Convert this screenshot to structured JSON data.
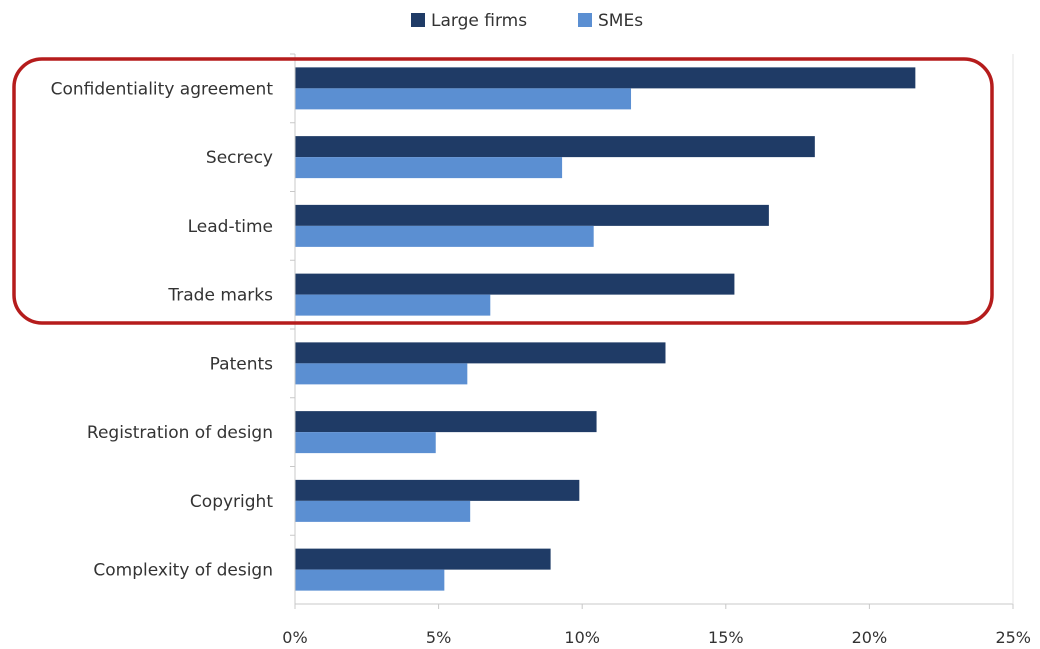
{
  "chart_data": {
    "type": "bar",
    "orientation": "horizontal",
    "categories": [
      "Confidentiality agreement",
      "Secrecy",
      "Lead-time",
      "Trade marks",
      "Patents",
      "Registration of design",
      "Copyright",
      "Complexity of design"
    ],
    "series": [
      {
        "name": "Large firms",
        "color": "#1f3b66",
        "values": [
          21.6,
          18.1,
          16.5,
          15.3,
          12.9,
          10.5,
          9.9,
          8.9
        ]
      },
      {
        "name": "SMEs",
        "color": "#5b8fd2",
        "values": [
          11.7,
          9.3,
          10.4,
          6.8,
          6.0,
          4.9,
          6.1,
          5.2
        ]
      }
    ],
    "x_ticks": [
      "0%",
      "5%",
      "10%",
      "15%",
      "20%",
      "25%"
    ],
    "xlim": [
      0,
      25
    ],
    "grid": false,
    "legend_position": "top-center",
    "highlight": {
      "categories": [
        "Confidentiality agreement",
        "Secrecy",
        "Lead-time",
        "Trade marks"
      ],
      "color": "#b51c1c"
    }
  }
}
